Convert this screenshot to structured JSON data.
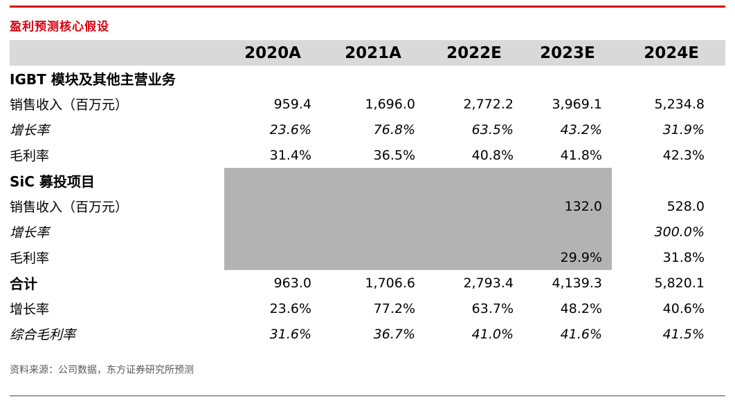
{
  "title": "盈利预测核心假设",
  "source_note": "资料来源：公司数据，东方证券研究所预测",
  "colors": {
    "accent_red": "#d7000f",
    "header_bg": "#d9d9d9",
    "shaded_block": "#b3b3b3",
    "source_text": "#595959"
  },
  "chart_data": {
    "type": "table",
    "title": "盈利预测核心假设",
    "columns": [
      "",
      "2020A",
      "2021A",
      "2022E",
      "2023E",
      "2024E"
    ],
    "rows": [
      {
        "label": "IGBT 模块及其他主营业务",
        "style": "section",
        "values": [
          "",
          "",
          "",
          "",
          ""
        ]
      },
      {
        "label": "销售收入（百万元）",
        "style": "normal",
        "values": [
          "959.4",
          "1,696.0",
          "2,772.2",
          "3,969.1",
          "5,234.8"
        ]
      },
      {
        "label": "增长率",
        "style": "italic",
        "values": [
          "23.6%",
          "76.8%",
          "63.5%",
          "43.2%",
          "31.9%"
        ]
      },
      {
        "label": "毛利率",
        "style": "normal",
        "values": [
          "31.4%",
          "36.5%",
          "40.8%",
          "41.8%",
          "42.3%"
        ]
      },
      {
        "label": "SiC 募投项目",
        "style": "section",
        "shaded_columns": [
          1,
          2,
          3,
          4
        ],
        "values": [
          "",
          "",
          "",
          "",
          ""
        ]
      },
      {
        "label": "销售收入（百万元）",
        "style": "normal",
        "shaded_columns": [
          1,
          2,
          3,
          4
        ],
        "values": [
          "",
          "",
          "",
          "132.0",
          "528.0"
        ]
      },
      {
        "label": "增长率",
        "style": "italic",
        "shaded_columns": [
          1,
          2,
          3,
          4
        ],
        "values": [
          "",
          "",
          "",
          "",
          "300.0%"
        ]
      },
      {
        "label": "毛利率",
        "style": "normal",
        "shaded_columns": [
          1,
          2,
          3,
          4
        ],
        "values": [
          "",
          "",
          "",
          "29.9%",
          "31.8%"
        ]
      },
      {
        "label": "合计",
        "style": "section",
        "values": [
          "963.0",
          "1,706.6",
          "2,793.4",
          "4,139.3",
          "5,820.1"
        ]
      },
      {
        "label": "增长率",
        "style": "normal",
        "values": [
          "23.6%",
          "77.2%",
          "63.7%",
          "48.2%",
          "40.6%"
        ]
      },
      {
        "label": "综合毛利率",
        "style": "italic",
        "values": [
          "31.6%",
          "36.7%",
          "41.0%",
          "41.6%",
          "41.5%"
        ]
      }
    ]
  }
}
